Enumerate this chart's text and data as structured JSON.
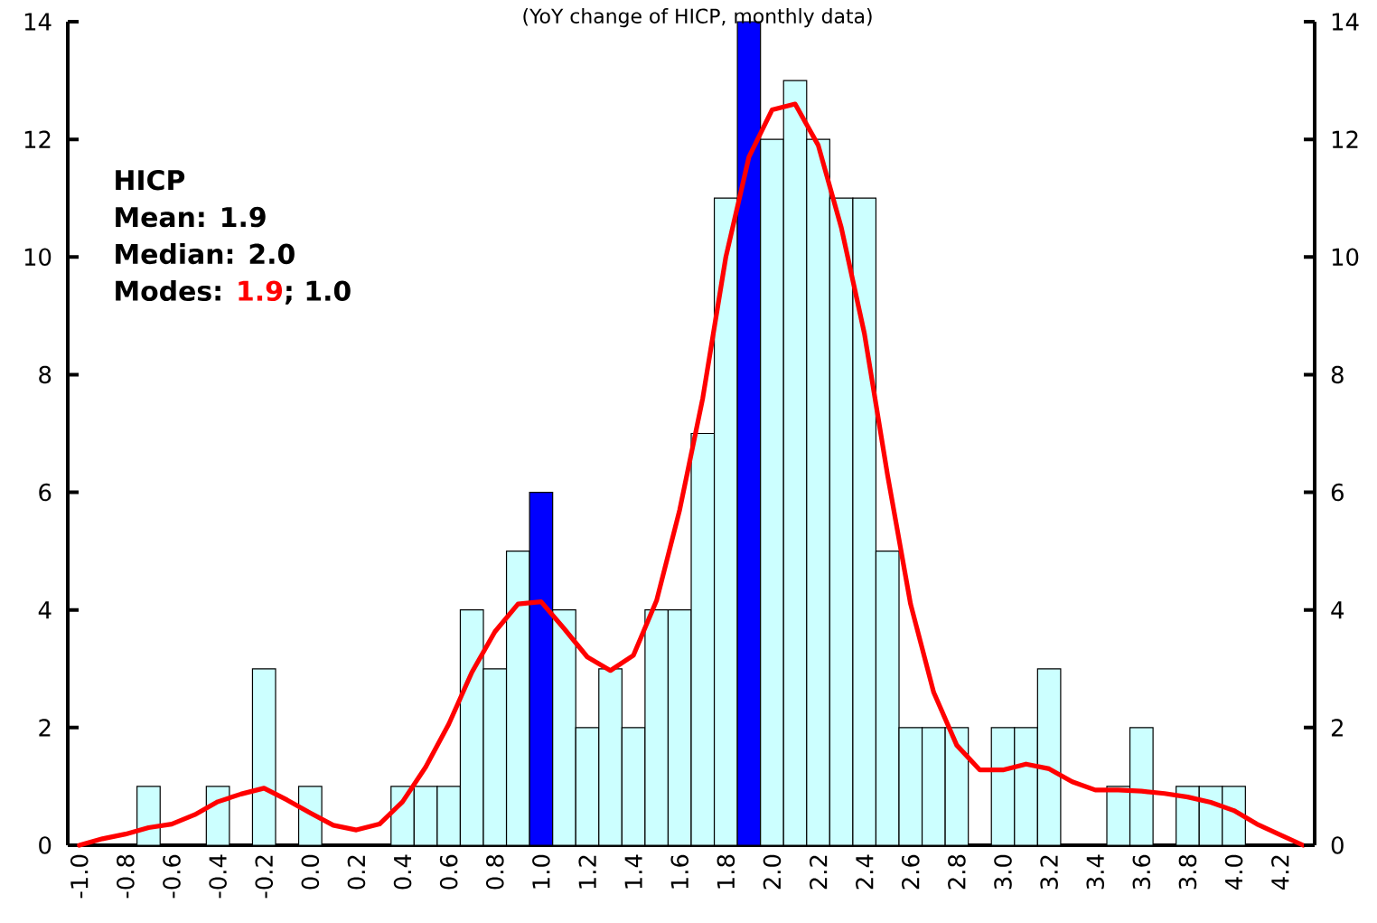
{
  "chart_data": {
    "type": "bar",
    "subtitle": "(YoY change of HICP, monthly data)",
    "categories": [
      "-1.0",
      null,
      "-0.8",
      null,
      "-0.6",
      null,
      "-0.4",
      null,
      "-0.2",
      null,
      "0.0",
      null,
      "0.2",
      null,
      "0.4",
      null,
      "0.6",
      null,
      "0.8",
      null,
      "1.0",
      null,
      "1.2",
      null,
      "1.4",
      null,
      "1.6",
      null,
      "1.8",
      null,
      "2.0",
      null,
      "2.2",
      null,
      "2.4",
      null,
      "2.6",
      null,
      "2.8",
      null,
      "3.0",
      null,
      "3.2",
      null,
      "3.4",
      null,
      "3.6",
      null,
      "3.8",
      null,
      "4.0",
      null,
      "4.2",
      null
    ],
    "series": [
      {
        "colors": [
          "#ccffff",
          "#ccffff",
          "#ccffff",
          "#ccffff",
          "#ccffff",
          "#ccffff",
          "#ccffff",
          "#ccffff",
          "#ccffff",
          "#ccffff",
          "#ccffff",
          "#ccffff",
          "#ccffff",
          "#ccffff",
          "#ccffff",
          "#ccffff",
          "#ccffff",
          "#ccffff",
          "#ccffff",
          "#ccffff",
          "#0000ff",
          "#ccffff",
          "#ccffff",
          "#ccffff",
          "#ccffff",
          "#ccffff",
          "#ccffff",
          "#ccffff",
          "#ccffff",
          "#0000ff",
          "#ccffff",
          "#ccffff",
          "#ccffff",
          "#ccffff",
          "#ccffff",
          "#ccffff",
          "#ccffff",
          "#ccffff",
          "#ccffff",
          "#ccffff",
          "#ccffff",
          "#ccffff",
          "#ccffff",
          "#ccffff",
          "#ccffff",
          "#ccffff",
          "#ccffff",
          "#ccffff",
          "#ccffff",
          "#ccffff",
          "#ccffff",
          "#ccffff",
          "#ccffff",
          "#ccffff"
        ],
        "values": [
          0,
          0,
          0,
          1,
          0,
          0,
          1,
          0,
          3,
          0,
          1,
          0,
          0,
          0,
          1,
          1,
          1,
          4,
          3,
          5,
          6,
          4,
          2,
          3,
          2,
          4,
          4,
          7,
          11,
          14,
          12,
          13,
          12,
          11,
          11,
          5,
          2,
          2,
          2,
          0,
          2,
          2,
          3,
          0,
          0,
          1,
          2,
          0,
          1,
          1,
          1,
          0,
          0,
          0
        ]
      },
      {
        "type": "line",
        "color": "#ff0000",
        "values": [
          0,
          0.11,
          0.19,
          0.3,
          0.36,
          0.52,
          0.74,
          0.87,
          0.97,
          0.77,
          0.55,
          0.34,
          0.26,
          0.36,
          0.74,
          1.33,
          2.06,
          2.94,
          3.63,
          4.1,
          4.14,
          3.68,
          3.2,
          2.97,
          3.23,
          4.16,
          5.7,
          7.6,
          10.0,
          11.7,
          12.5,
          12.6,
          11.9,
          10.5,
          8.7,
          6.3,
          4.1,
          2.6,
          1.7,
          1.28,
          1.28,
          1.38,
          1.3,
          1.08,
          0.94,
          0.94,
          0.92,
          0.88,
          0.82,
          0.73,
          0.59,
          0.36,
          0.18,
          0
        ]
      }
    ],
    "ylim": [
      0,
      14
    ],
    "yticks": [
      0,
      2,
      4,
      6,
      8,
      10,
      12,
      14
    ],
    "y2lim": [
      0,
      14
    ],
    "y2ticks": [
      0,
      2,
      4,
      6,
      8,
      10,
      12,
      14
    ],
    "annotations": [
      "HICP",
      "Mean: 1.9",
      "Median: 2.0",
      "Modes:",
      "1.9",
      "; 1.0"
    ]
  }
}
